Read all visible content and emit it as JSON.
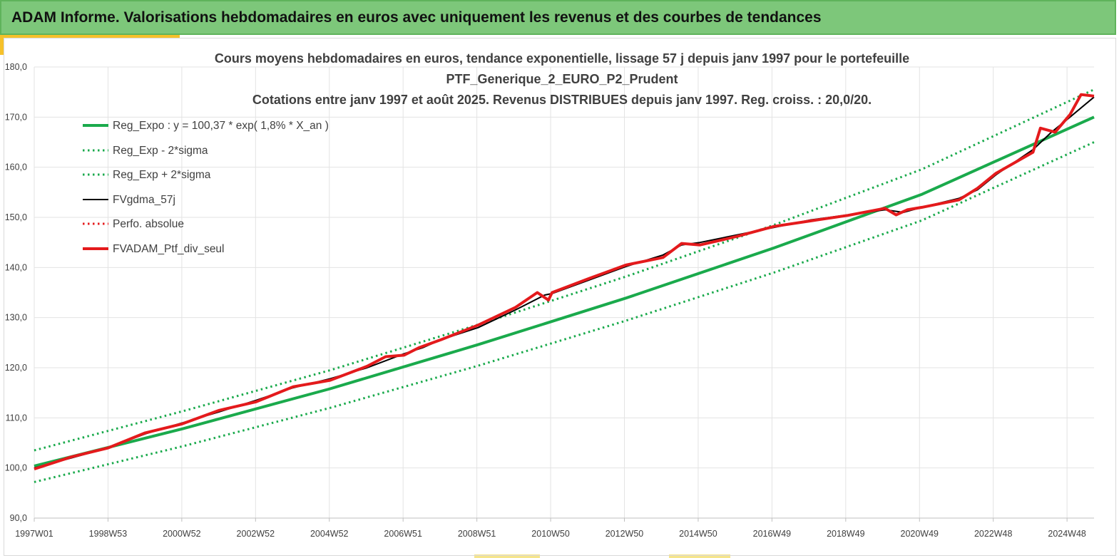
{
  "page": {
    "banner_title": "ADAM Informe. Valorisations hebdomadaires en euros avec uniquement les revenus et des courbes de tendances"
  },
  "colors": {
    "banner_bg": "#7dc77a",
    "accent": "#f6c12a",
    "trend": "#1aaa4c",
    "band": "#1aaa4c",
    "smoothed": "#000000",
    "portfolio": "#e41a1c"
  },
  "chart_data": {
    "type": "line",
    "title": [
      "Cours moyens hebdomadaires  en euros, tendance exponentielle, lissage 57 j depuis janv 1997 pour le portefeuille",
      "PTF_Generique_2_EURO_P2_Prudent",
      "Cotations  entre janv 1997 et août 2025. Revenus DISTRIBUES depuis janv 1997. Reg. croiss. : 20,0/20."
    ],
    "xlabel": "",
    "ylabel": "",
    "ylim": [
      90,
      180
    ],
    "yticks": [
      "90,0",
      "100,0",
      "110,0",
      "120,0",
      "130,0",
      "140,0",
      "150,0",
      "160,0",
      "170,0",
      "180,0"
    ],
    "xticks": [
      "1997W01",
      "1998W53",
      "2000W52",
      "2002W52",
      "2004W52",
      "2006W51",
      "2008W51",
      "2010W50",
      "2012W50",
      "2014W50",
      "2016W49",
      "2018W49",
      "2020W49",
      "2022W48",
      "2024W48"
    ],
    "xrange_years": [
      1997.0,
      2025.65
    ],
    "grid": true,
    "legend_position": "top-left",
    "series": [
      {
        "name": "Reg_Expo : y = 100,37 * exp( 1,8% *  X_an )",
        "style": "solid-thick",
        "color": "#1aaa4c",
        "x": [
          1997.0,
          2001.0,
          2005.0,
          2009.0,
          2013.0,
          2017.0,
          2021.0,
          2025.65
        ],
        "y": [
          100.4,
          107.8,
          115.8,
          124.6,
          133.9,
          143.9,
          154.6,
          170.0
        ]
      },
      {
        "name": "Reg_Exp - 2*sigma",
        "style": "dotted",
        "color": "#1aaa4c",
        "x": [
          1997.0,
          2001.0,
          2005.0,
          2009.0,
          2013.0,
          2017.0,
          2021.0,
          2025.65
        ],
        "y": [
          97.2,
          104.3,
          112.0,
          120.4,
          129.4,
          139.0,
          149.4,
          165.0
        ]
      },
      {
        "name": "Reg_Exp + 2*sigma",
        "style": "dotted",
        "color": "#1aaa4c",
        "x": [
          1997.0,
          2001.0,
          2005.0,
          2009.0,
          2013.0,
          2017.0,
          2021.0,
          2025.65
        ],
        "y": [
          103.5,
          111.3,
          119.5,
          128.6,
          138.2,
          148.5,
          159.6,
          175.5
        ]
      },
      {
        "name": "FVgdma_57j",
        "style": "solid",
        "color": "#000000",
        "x": [
          1997.0,
          1998.0,
          1999.0,
          2000.0,
          2001.0,
          2002.0,
          2003.0,
          2004.0,
          2005.0,
          2006.0,
          2007.0,
          2007.5,
          2008.0,
          2009.0,
          2010.0,
          2010.8,
          2011.0,
          2012.0,
          2013.0,
          2014.0,
          2014.5,
          2015.0,
          2016.0,
          2017.0,
          2018.0,
          2019.0,
          2020.0,
          2020.5,
          2021.0,
          2022.0,
          2022.5,
          2023.0,
          2024.0,
          2024.5,
          2025.0,
          2025.65
        ],
        "y": [
          100.0,
          102.0,
          104.0,
          106.8,
          109.0,
          111.2,
          113.5,
          116.0,
          117.8,
          120.0,
          122.8,
          124.0,
          125.6,
          128.0,
          131.5,
          134.5,
          134.8,
          137.5,
          140.2,
          142.5,
          144.5,
          145.0,
          146.5,
          148.0,
          149.5,
          150.5,
          151.5,
          151.0,
          152.0,
          153.8,
          155.5,
          158.5,
          163.5,
          167.0,
          170.0,
          174.0
        ]
      },
      {
        "name": "Perfo. absolue",
        "style": "dotted",
        "color": "#e41a1c",
        "x": [],
        "y": []
      },
      {
        "name": "FVADAM_Ptf_div_seul",
        "style": "solid-thick",
        "color": "#e41a1c",
        "x": [
          1997.0,
          1998.0,
          1999.0,
          2000.0,
          2001.0,
          2002.0,
          2003.0,
          2004.0,
          2005.0,
          2006.0,
          2006.5,
          2007.0,
          2007.4,
          2008.0,
          2009.0,
          2010.0,
          2010.6,
          2010.9,
          2011.0,
          2012.0,
          2013.0,
          2014.0,
          2014.5,
          2015.0,
          2016.0,
          2017.0,
          2018.0,
          2019.0,
          2020.0,
          2020.3,
          2020.6,
          2021.0,
          2022.0,
          2022.5,
          2023.0,
          2024.0,
          2024.2,
          2024.6,
          2025.0,
          2025.3,
          2025.65
        ],
        "y": [
          99.8,
          102.2,
          104.0,
          107.0,
          108.8,
          111.5,
          113.2,
          116.2,
          117.5,
          120.3,
          122.2,
          122.5,
          124.0,
          125.6,
          128.5,
          132.0,
          135.0,
          133.5,
          135.0,
          137.8,
          140.5,
          142.0,
          144.8,
          144.5,
          146.2,
          148.2,
          149.3,
          150.4,
          151.8,
          150.5,
          151.5,
          152.0,
          153.5,
          155.8,
          158.8,
          163.0,
          167.8,
          167.0,
          170.5,
          174.5,
          174.2
        ]
      }
    ]
  }
}
